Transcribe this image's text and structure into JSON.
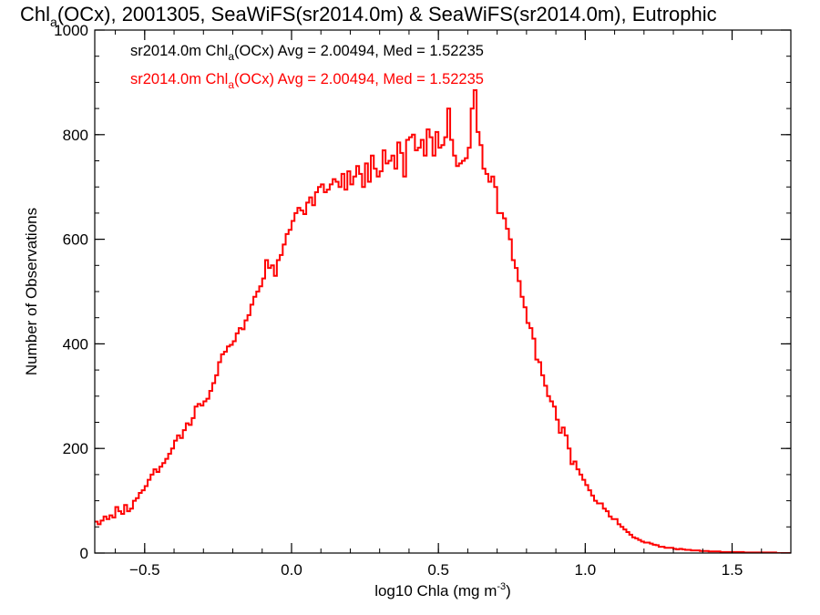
{
  "chart_data": {
    "type": "histogram",
    "title_parts": [
      "Chl",
      "a",
      "(OCx), 2001305, SeaWiFS(sr2014.0m) & SeaWiFS(sr2014.0m), Eutrophic"
    ],
    "xlabel_parts": [
      "log10 Chla (mg m",
      "-3",
      ")"
    ],
    "ylabel": "Number of Observations",
    "xlim": [
      -0.67,
      1.7
    ],
    "ylim": [
      0,
      1000
    ],
    "xticks": [
      -0.5,
      0.0,
      0.5,
      1.0,
      1.5
    ],
    "xtick_labels": [
      "−0.5",
      "0.0",
      "0.5",
      "1.0",
      "1.5"
    ],
    "yticks": [
      0,
      200,
      400,
      600,
      800,
      1000
    ],
    "ytick_labels": [
      "0",
      "200",
      "400",
      "600",
      "800",
      "1000"
    ],
    "legend": [
      {
        "prefix": "sr2014.0m Chl",
        "sub": "a",
        "suffix": "(OCx) Avg = 2.00494, Med = 1.52235",
        "color": "#000000"
      },
      {
        "prefix": "sr2014.0m Chl",
        "sub": "a",
        "suffix": "(OCx) Avg = 2.00494, Med = 1.52235",
        "color": "#ff0000"
      }
    ],
    "series": [
      {
        "color": "#ff0000",
        "x_start": -0.67,
        "bin_width": 0.01,
        "counts": [
          60,
          55,
          62,
          70,
          65,
          72,
          68,
          88,
          80,
          75,
          92,
          80,
          85,
          100,
          105,
          115,
          120,
          128,
          140,
          150,
          160,
          155,
          165,
          172,
          180,
          190,
          200,
          215,
          225,
          220,
          235,
          248,
          245,
          258,
          280,
          285,
          282,
          290,
          295,
          310,
          325,
          340,
          365,
          380,
          385,
          395,
          398,
          405,
          420,
          430,
          428,
          445,
          455,
          475,
          490,
          500,
          510,
          525,
          560,
          545,
          550,
          530,
          560,
          570,
          590,
          610,
          618,
          635,
          650,
          660,
          655,
          648,
          670,
          680,
          665,
          690,
          700,
          705,
          690,
          695,
          705,
          715,
          710,
          700,
          725,
          695,
          730,
          705,
          720,
          740,
          725,
          700,
          745,
          710,
          760,
          735,
          720,
          730,
          770,
          745,
          750,
          760,
          735,
          785,
          765,
          720,
          790,
          795,
          800,
          770,
          775,
          790,
          760,
          810,
          795,
          760,
          805,
          775,
          780,
          795,
          850,
          790,
          760,
          740,
          745,
          750,
          755,
          775,
          850,
          885,
          805,
          780,
          735,
          725,
          710,
          720,
          700,
          650,
          650,
          640,
          620,
          600,
          560,
          545,
          520,
          490,
          470,
          440,
          430,
          410,
          370,
          365,
          340,
          320,
          300,
          290,
          280,
          255,
          230,
          240,
          225,
          200,
          170,
          175,
          160,
          150,
          140,
          130,
          120,
          110,
          100,
          95,
          95,
          85,
          80,
          70,
          65,
          65,
          55,
          50,
          45,
          40,
          35,
          30,
          28,
          25,
          22,
          20,
          20,
          18,
          16,
          15,
          12,
          12,
          10,
          10,
          10,
          8,
          7,
          8,
          7,
          6,
          6,
          5,
          5,
          5,
          4,
          4,
          4,
          3,
          3,
          3,
          3,
          2,
          2,
          2,
          2,
          2,
          2,
          2,
          2,
          1,
          1,
          1,
          1,
          1,
          1,
          1,
          1,
          1,
          1,
          1,
          0,
          0,
          0,
          0,
          0,
          0,
          0
        ]
      }
    ]
  }
}
